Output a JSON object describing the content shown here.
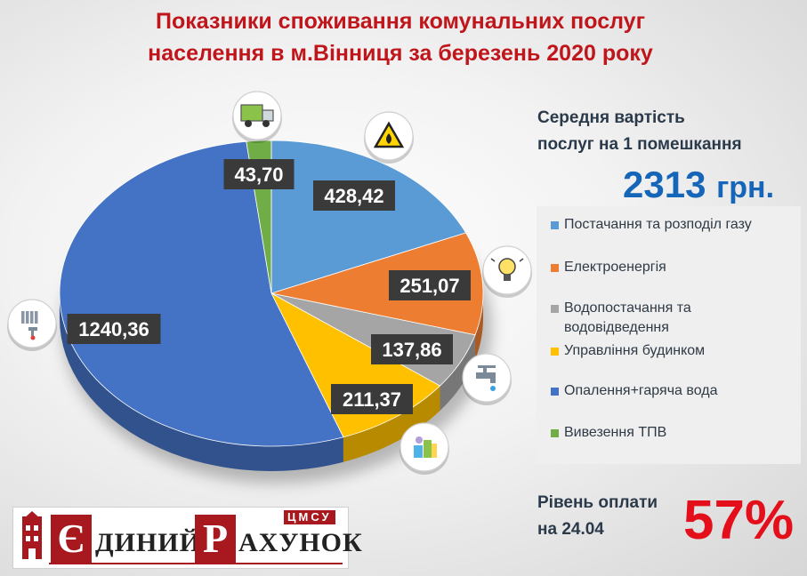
{
  "title": {
    "line1": "Показники споживання комунальних послуг",
    "line2": "населення в м.Вінниця за березень 2020 року"
  },
  "average": {
    "label_line1": "Середня вартість",
    "label_line2": "послуг на 1 помешкання",
    "value": "2313",
    "unit": "грн."
  },
  "payment": {
    "label_line1": "Рівень оплати",
    "label_line2": "на 24.04",
    "value": "57%"
  },
  "logo": {
    "letter1": "Є",
    "word1": "ДИНИЙ",
    "letter2": "Р",
    "word2": "АХУНОК",
    "tag": "ЦМСУ"
  },
  "chart_data": {
    "type": "pie",
    "title": "Показники споживання комунальних послуг населення в м.Вінниця за березень 2020 року",
    "legend_position": "right",
    "slices": [
      {
        "name": "Постачання та розподіл газу",
        "value": 428.42,
        "label": "428,42",
        "color": "#5b9bd5",
        "icon": "gas-flame-warning-icon"
      },
      {
        "name": "Електроенергія",
        "value": 251.07,
        "label": "251,07",
        "color": "#ed7d31",
        "icon": "light-bulb-icon"
      },
      {
        "name": "Водопостачання та водовідведення",
        "value": 137.86,
        "label": "137,86",
        "color": "#a5a5a5",
        "icon": "water-tap-icon"
      },
      {
        "name": "Управління будинком",
        "value": 211.37,
        "label": "211,37",
        "color": "#ffc000",
        "icon": "cleaning-supplies-icon"
      },
      {
        "name": "Опалення+гаряча вода",
        "value": 1240.36,
        "label": "1240,36",
        "color": "#4472c4",
        "icon": "radiator-tap-icon"
      },
      {
        "name": "Вивезення ТПВ",
        "value": 43.7,
        "label": "43,70",
        "color": "#70ad47",
        "icon": "garbage-truck-icon"
      }
    ]
  }
}
